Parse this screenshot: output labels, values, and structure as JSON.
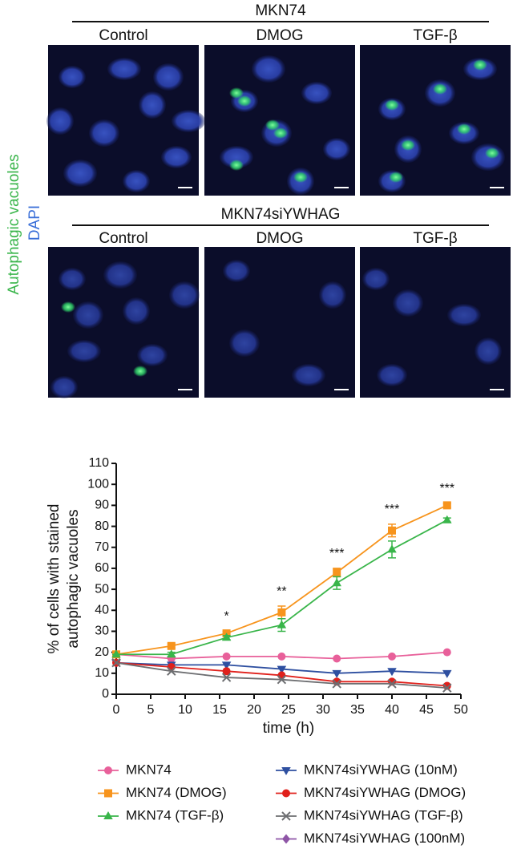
{
  "panels": {
    "top_title": "MKN74",
    "bottom_title": "MKN74siYWHAG",
    "columns": [
      "Control",
      "DMOG",
      "TGF-β"
    ],
    "side_label": [
      "Autophagic vacuoles",
      "DAPI"
    ]
  },
  "chart_data": {
    "type": "line",
    "ylabel": [
      "% of cells with stained",
      "autophagic vacuoles"
    ],
    "xlabel": "time (h)",
    "x": [
      0,
      8,
      16,
      24,
      32,
      40,
      48
    ],
    "xlim": [
      0,
      50
    ],
    "xticks": [
      0,
      5,
      10,
      15,
      20,
      25,
      30,
      35,
      40,
      45,
      50
    ],
    "ylim": [
      0,
      110
    ],
    "yticks": [
      0,
      10,
      20,
      30,
      40,
      50,
      60,
      70,
      80,
      90,
      100,
      110
    ],
    "series": [
      {
        "name": "MKN74",
        "color": "#e8609a",
        "marker": "circle",
        "values": [
          19,
          17,
          18,
          18,
          17,
          18,
          20
        ]
      },
      {
        "name": "MKN74 (DMOG)",
        "color": "#f7941d",
        "marker": "square",
        "values": [
          19,
          23,
          29,
          39,
          58,
          78,
          90
        ],
        "errors": [
          0,
          1,
          1,
          3,
          2,
          3,
          1
        ]
      },
      {
        "name": "MKN74 (TGF-β)",
        "color": "#39b54a",
        "marker": "triangle",
        "values": [
          19,
          19,
          27,
          33,
          53,
          69,
          83
        ],
        "errors": [
          0,
          1,
          1,
          3,
          3,
          4,
          1
        ]
      },
      {
        "name": "MKN74siYWHAG (10nM)",
        "color": "#2e4fa0",
        "marker": "triangle-down",
        "values": [
          15,
          14,
          14,
          12,
          10,
          11,
          10
        ]
      },
      {
        "name": "MKN74siYWHAG (DMOG)",
        "color": "#e0201b",
        "marker": "circle",
        "values": [
          15,
          13,
          11,
          9,
          6,
          6,
          4
        ]
      },
      {
        "name": "MKN74siYWHAG (TGF-β)",
        "color": "#6d6e71",
        "marker": "x",
        "values": [
          15,
          11,
          8,
          7,
          5,
          5,
          3
        ]
      },
      {
        "name": "MKN74siYWHAG (100nM)",
        "color": "#8e55a6",
        "marker": "diamond",
        "values": [
          null,
          null,
          null,
          null,
          null,
          null,
          null
        ]
      }
    ],
    "annotations": [
      {
        "text": "*",
        "x": 16
      },
      {
        "text": "**",
        "x": 24
      },
      {
        "text": "***",
        "x": 32
      },
      {
        "text": "***",
        "x": 40
      },
      {
        "text": "***",
        "x": 48
      }
    ]
  }
}
